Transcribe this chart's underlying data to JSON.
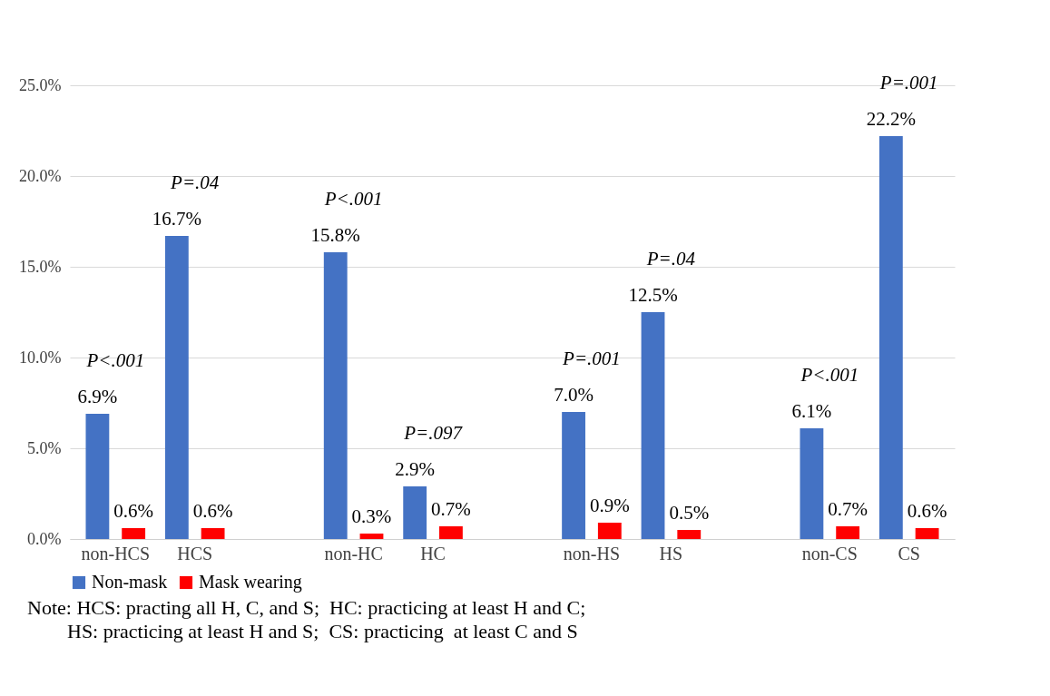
{
  "chart_data": {
    "type": "bar",
    "categories": [
      "non-HCS",
      "HCS",
      null,
      "non-HC",
      "HC",
      null,
      "non-HS",
      "HS",
      null,
      "non-CS",
      "CS"
    ],
    "series": [
      {
        "name": "Non-mask",
        "color": "#4472c4",
        "values": [
          6.9,
          16.7,
          null,
          15.8,
          2.9,
          null,
          7.0,
          12.5,
          null,
          6.1,
          22.2
        ],
        "value_labels": [
          "6.9%",
          "16.7%",
          null,
          "15.8%",
          "2.9%",
          null,
          "7.0%",
          "12.5%",
          null,
          "6.1%",
          "22.2%"
        ]
      },
      {
        "name": "Mask wearing",
        "color": "#ff0000",
        "values": [
          0.6,
          0.6,
          null,
          0.3,
          0.7,
          null,
          0.9,
          0.5,
          null,
          0.7,
          0.6
        ],
        "value_labels": [
          "0.6%",
          "0.6%",
          null,
          "0.3%",
          "0.7%",
          null,
          "0.9%",
          "0.5%",
          null,
          "0.7%",
          "0.6%"
        ]
      }
    ],
    "ylim": [
      0,
      25
    ],
    "yticks": [
      {
        "value": 0,
        "label": "0.0%"
      },
      {
        "value": 5,
        "label": "5.0%"
      },
      {
        "value": 10,
        "label": "10.0%"
      },
      {
        "value": 15,
        "label": "15.0%"
      },
      {
        "value": 20,
        "label": "20.0%"
      },
      {
        "value": 25,
        "label": "25.0%"
      }
    ],
    "grid": "y",
    "legend": "bottom",
    "annotations": [
      "P<.001",
      "P=.04",
      "P<.001",
      "P=.097",
      "P=.001",
      "P=.04",
      "P<.001",
      "P=.001",
      "Note: HCS: practing all H, C, and S;  HC: practicing at least H and C;\n        HS: practicing at least H and S;  CS: practicing  at least C and S"
    ]
  }
}
